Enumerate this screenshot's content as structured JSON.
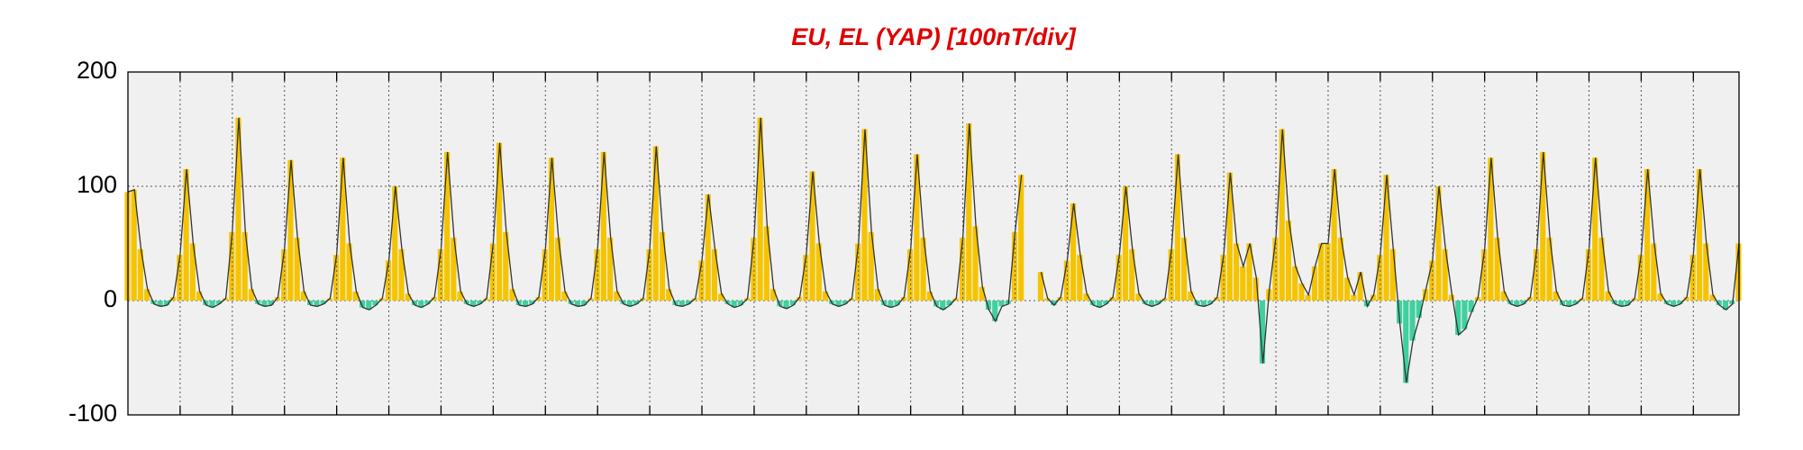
{
  "chart_data": {
    "type": "area",
    "title": "EU, EL (YAP)  [100nT/div]",
    "values": [
      95,
      97,
      45,
      10,
      -3,
      -5,
      -4,
      3,
      40,
      115,
      50,
      8,
      -4,
      -6,
      -3,
      2,
      60,
      160,
      60,
      10,
      -3,
      -5,
      -4,
      3,
      45,
      123,
      55,
      8,
      -4,
      -5,
      -3,
      2,
      40,
      125,
      50,
      8,
      -6,
      -8,
      -4,
      2,
      35,
      100,
      45,
      6,
      -4,
      -6,
      -3,
      3,
      45,
      130,
      55,
      8,
      -3,
      -5,
      -3,
      2,
      50,
      138,
      60,
      10,
      -4,
      -5,
      -3,
      3,
      45,
      125,
      55,
      8,
      -3,
      -5,
      -4,
      2,
      45,
      130,
      55,
      8,
      -3,
      -5,
      -3,
      2,
      45,
      135,
      60,
      10,
      -4,
      -5,
      -3,
      2,
      35,
      93,
      45,
      6,
      -3,
      -6,
      -4,
      2,
      55,
      160,
      65,
      10,
      -5,
      -7,
      -4,
      3,
      40,
      113,
      50,
      8,
      -3,
      -5,
      -3,
      2,
      50,
      150,
      60,
      10,
      -4,
      -6,
      -4,
      3,
      45,
      128,
      55,
      8,
      -5,
      -8,
      -4,
      2,
      55,
      155,
      65,
      12,
      -8,
      -18,
      -5,
      -3,
      60,
      110,
      null,
      null,
      25,
      2,
      -4,
      3,
      35,
      85,
      40,
      6,
      -4,
      -6,
      -3,
      3,
      40,
      100,
      45,
      6,
      -3,
      -5,
      -3,
      2,
      45,
      128,
      55,
      8,
      -4,
      -5,
      -3,
      3,
      40,
      112,
      50,
      30,
      50,
      20,
      -55,
      10,
      55,
      150,
      70,
      30,
      15,
      5,
      30,
      50,
      50,
      115,
      55,
      20,
      5,
      25,
      -5,
      5,
      40,
      110,
      45,
      -20,
      -72,
      -35,
      -15,
      10,
      35,
      100,
      45,
      5,
      -30,
      -25,
      -10,
      3,
      45,
      125,
      55,
      8,
      -3,
      -5,
      -3,
      3,
      45,
      130,
      55,
      8,
      -4,
      -5,
      -3,
      2,
      45,
      125,
      55,
      8,
      -3,
      -5,
      -4,
      2,
      40,
      115,
      50,
      6,
      -3,
      -5,
      -3,
      3,
      40,
      115,
      50,
      5,
      -4,
      -8,
      -3,
      50
    ],
    "positive_color": "#f5c400",
    "negative_color": "#3fd0a0",
    "line_color": "#333333",
    "xlim": [
      0,
      247
    ],
    "xticks": [
      8,
      16,
      24,
      32,
      40,
      48,
      56,
      64,
      72,
      80,
      88,
      96,
      104,
      112,
      120,
      128,
      136,
      144,
      152,
      160,
      168,
      176,
      184,
      192,
      200,
      208,
      216,
      224,
      232,
      240
    ],
    "ylim": [
      -100,
      200
    ],
    "yticks": [
      -100,
      0,
      100,
      200
    ],
    "grid": true
  }
}
